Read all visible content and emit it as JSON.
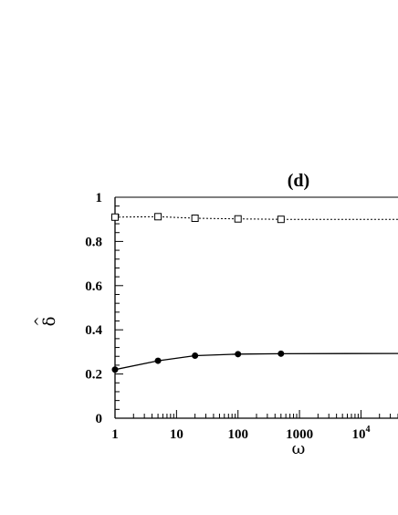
{
  "chart_data": {
    "type": "line",
    "title": "(d)",
    "xlabel": "ω",
    "ylabel": "δ̂",
    "ylabel_base": "δ",
    "ylabel_accent": "^",
    "x_scale": "log",
    "xlim": [
      1,
      40000
    ],
    "ylim": [
      0,
      1
    ],
    "x_ticks": [
      {
        "value": 1,
        "label": "1"
      },
      {
        "value": 10,
        "label": "10"
      },
      {
        "value": 100,
        "label": "100"
      },
      {
        "value": 1000,
        "label": "1000"
      },
      {
        "value": 10000,
        "label": "10",
        "sup": "4"
      }
    ],
    "y_ticks": [
      {
        "value": 0,
        "label": "0"
      },
      {
        "value": 0.2,
        "label": "0.2"
      },
      {
        "value": 0.4,
        "label": "0.4"
      },
      {
        "value": 0.6,
        "label": "0.6"
      },
      {
        "value": 0.8,
        "label": "0.8"
      },
      {
        "value": 1,
        "label": "1"
      }
    ],
    "grid": false,
    "series": [
      {
        "style": "dotted",
        "marker": "open-square",
        "color": "#000000",
        "x": [
          1,
          5,
          20,
          100,
          500
        ],
        "y": [
          0.91,
          0.912,
          0.905,
          0.902,
          0.9
        ],
        "extend_to": 40000,
        "extend_y": 0.9
      },
      {
        "style": "solid",
        "marker": "filled-circle",
        "color": "#000000",
        "x": [
          1,
          5,
          20,
          100,
          500
        ],
        "y": [
          0.22,
          0.26,
          0.283,
          0.29,
          0.292
        ],
        "extend_to": 40000,
        "extend_y": 0.293
      }
    ]
  }
}
